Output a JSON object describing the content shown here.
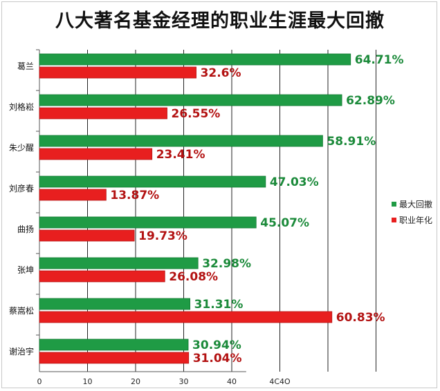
{
  "chart_data": {
    "type": "bar",
    "orientation": "horizontal",
    "title": "八大著名基金经理的职业生涯最大回撤",
    "categories": [
      "葛兰",
      "刘格崧",
      "朱少醒",
      "刘彦春",
      "曲扬",
      "张坤",
      "蔡嵩松",
      "谢治宇"
    ],
    "series": [
      {
        "name": "最大回撤",
        "color": "#1f9b45",
        "label_color": "#1b8a3a",
        "values": [
          64.71,
          62.89,
          58.91,
          47.03,
          45.07,
          32.98,
          31.31,
          30.94
        ],
        "labels": [
          "64.71%",
          "62.89%",
          "58.91%",
          "47.03%",
          "45.07%",
          "32.98%",
          "31.31%",
          "30.94%"
        ]
      },
      {
        "name": "职业年化",
        "color": "#e81f1f",
        "label_color": "#b31212",
        "values": [
          32.6,
          26.55,
          23.41,
          13.87,
          19.73,
          26.08,
          60.83,
          31.04
        ],
        "labels": [
          "32.6%",
          "26.55%",
          "23.41%",
          "13.87%",
          "19.73%",
          "26.08%",
          "60.83%",
          "31.04%"
        ]
      }
    ],
    "x_ticks": [
      "0",
      "10",
      "20",
      "30",
      "40",
      "4C4O"
    ],
    "xlim": [
      0,
      70
    ],
    "grid": true,
    "legend_position": "right"
  }
}
